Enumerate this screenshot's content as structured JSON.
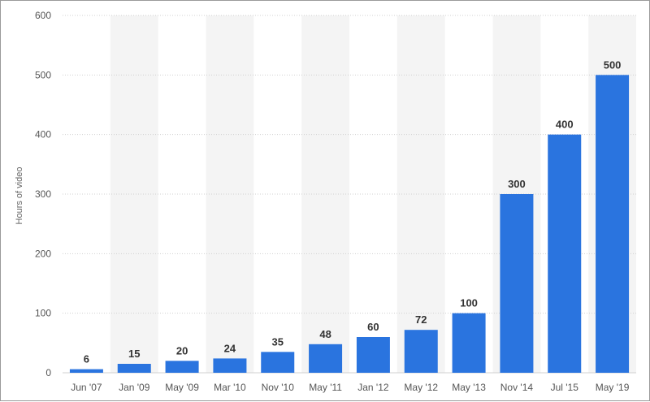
{
  "chart_data": {
    "type": "bar",
    "categories": [
      "Jun '07",
      "Jan '09",
      "May '09",
      "Mar '10",
      "Nov '10",
      "May '11",
      "Jan '12",
      "May '12",
      "May '13",
      "Nov '14",
      "Jul '15",
      "May '19"
    ],
    "series": [
      {
        "values": [
          6,
          15,
          20,
          24,
          35,
          48,
          60,
          72,
          100,
          300,
          400,
          500
        ]
      }
    ],
    "ylabel": "Hours of video",
    "xlabel": "",
    "ylim": [
      0,
      600
    ],
    "yticks": [
      0,
      100,
      200,
      300,
      400,
      500,
      600
    ],
    "grid": true,
    "legend": "none",
    "data_labels": true
  },
  "colors": {
    "bar": "#2a74df",
    "band": "#f4f4f4",
    "grid": "#d0d0d0"
  }
}
